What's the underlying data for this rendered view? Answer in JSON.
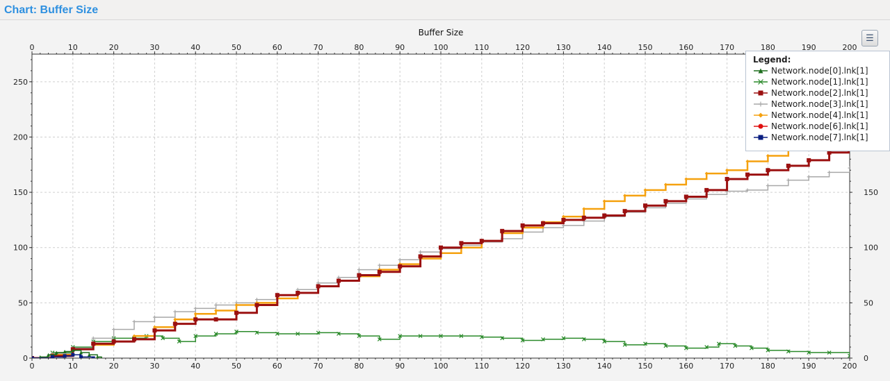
{
  "page": {
    "title": "Chart: Buffer Size"
  },
  "legend_button": {
    "icon": "legend-list-icon"
  },
  "chart_data": {
    "type": "line",
    "title": "Buffer Size",
    "xlim": [
      0,
      200
    ],
    "ylim": [
      0,
      275
    ],
    "xticks": [
      0,
      10,
      20,
      30,
      40,
      50,
      60,
      70,
      80,
      90,
      100,
      110,
      120,
      130,
      140,
      150,
      160,
      170,
      180,
      190,
      200
    ],
    "yticks": [
      0,
      50,
      100,
      150,
      200,
      250
    ],
    "grid": true,
    "legend": {
      "title": "Legend:",
      "placement": "top-right"
    },
    "series": [
      {
        "name": "Network.node[0].lnk[1]",
        "color": "#1e6e1e",
        "marker": "triangle",
        "x": [
          0,
          2,
          4,
          6,
          8,
          10,
          12,
          14,
          16,
          17
        ],
        "y": [
          0,
          1,
          3,
          5,
          6,
          7,
          5,
          3,
          1,
          0
        ]
      },
      {
        "name": "Network.node[1].lnk[1]",
        "color": "#2a8a2a",
        "marker": "x",
        "x": [
          0,
          5,
          10,
          15,
          20,
          25,
          28,
          32,
          36,
          40,
          45,
          50,
          55,
          60,
          65,
          70,
          75,
          80,
          85,
          90,
          95,
          100,
          105,
          110,
          115,
          120,
          125,
          130,
          135,
          140,
          145,
          150,
          155,
          160,
          165,
          168,
          172,
          176,
          180,
          185,
          190,
          195,
          200
        ],
        "y": [
          0,
          5,
          10,
          15,
          18,
          18,
          20,
          18,
          15,
          20,
          22,
          24,
          23,
          22,
          22,
          23,
          22,
          20,
          17,
          20,
          20,
          20,
          20,
          19,
          18,
          16,
          17,
          18,
          17,
          15,
          12,
          13,
          11,
          9,
          10,
          13,
          11,
          9,
          7,
          6,
          5,
          5,
          2
        ]
      },
      {
        "name": "Network.node[2].lnk[1]",
        "color": "#9b1010",
        "marker": "square",
        "x": [
          0,
          5,
          10,
          15,
          20,
          25,
          30,
          35,
          40,
          45,
          50,
          55,
          60,
          65,
          70,
          75,
          80,
          85,
          90,
          95,
          100,
          105,
          110,
          115,
          120,
          125,
          130,
          135,
          140,
          145,
          150,
          155,
          160,
          165,
          170,
          175,
          180,
          185,
          190,
          195,
          200
        ],
        "y": [
          0,
          2,
          8,
          13,
          15,
          17,
          25,
          31,
          35,
          35,
          41,
          48,
          57,
          59,
          65,
          70,
          75,
          78,
          83,
          92,
          100,
          104,
          106,
          115,
          120,
          122,
          125,
          127,
          129,
          133,
          138,
          142,
          146,
          152,
          162,
          166,
          170,
          174,
          179,
          186,
          188
        ]
      },
      {
        "name": "Network.node[3].lnk[1]",
        "color": "#a8a8a8",
        "marker": "plus",
        "x": [
          0,
          5,
          10,
          15,
          20,
          25,
          30,
          35,
          40,
          45,
          50,
          55,
          60,
          65,
          70,
          75,
          80,
          85,
          90,
          95,
          100,
          105,
          110,
          115,
          120,
          125,
          130,
          135,
          140,
          145,
          150,
          155,
          160,
          165,
          170,
          175,
          180,
          185,
          190,
          195,
          200
        ],
        "y": [
          0,
          4,
          9,
          18,
          26,
          33,
          37,
          42,
          45,
          48,
          50,
          53,
          57,
          62,
          68,
          73,
          80,
          84,
          89,
          96,
          99,
          102,
          105,
          108,
          114,
          118,
          120,
          124,
          128,
          132,
          136,
          140,
          144,
          148,
          151,
          152,
          156,
          161,
          164,
          168,
          172
        ]
      },
      {
        "name": "Network.node[4].lnk[1]",
        "color": "#f5a10f",
        "marker": "diamond",
        "x": [
          0,
          5,
          10,
          15,
          20,
          25,
          30,
          35,
          40,
          45,
          50,
          55,
          60,
          65,
          70,
          75,
          80,
          85,
          90,
          95,
          100,
          105,
          110,
          115,
          120,
          125,
          130,
          135,
          140,
          145,
          150,
          155,
          160,
          165,
          170,
          175,
          180,
          185,
          190
        ],
        "y": [
          0,
          3,
          8,
          12,
          15,
          20,
          28,
          35,
          40,
          43,
          48,
          50,
          54,
          59,
          65,
          70,
          74,
          80,
          85,
          90,
          95,
          100,
          106,
          113,
          118,
          123,
          128,
          135,
          142,
          147,
          152,
          157,
          162,
          167,
          170,
          178,
          183,
          190,
          196
        ]
      },
      {
        "name": "Network.node[6].lnk[1]",
        "color": "#e01010",
        "marker": "circle",
        "x": [],
        "y": []
      },
      {
        "name": "Network.node[7].lnk[1]",
        "color": "#0a1e80",
        "marker": "square",
        "x": [
          0,
          5,
          8,
          10,
          12,
          15
        ],
        "y": [
          0,
          1,
          2,
          3,
          1,
          0
        ]
      }
    ]
  }
}
